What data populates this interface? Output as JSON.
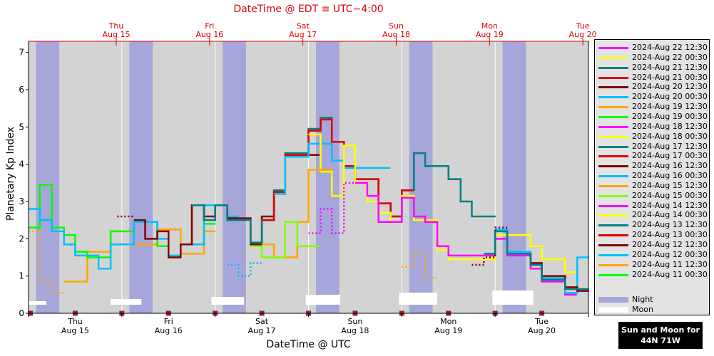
{
  "top_axis": {
    "title": "DateTime @ EDT ≡ UTC−4:00",
    "ticks": [
      {
        "day": "Thu",
        "date": "Aug 15",
        "t": 0.94
      },
      {
        "day": "Fri",
        "date": "Aug 16",
        "t": 1.94
      },
      {
        "day": "Sat",
        "date": "Aug 17",
        "t": 2.94
      },
      {
        "day": "Sun",
        "date": "Aug 18",
        "t": 3.94
      },
      {
        "day": "Mon",
        "date": "Aug 19",
        "t": 4.94
      },
      {
        "day": "Tue",
        "date": "Aug 20",
        "t": 5.94
      }
    ]
  },
  "bottom_axis": {
    "title": "DateTime @ UTC",
    "ticks": [
      {
        "day": "Thu",
        "date": "Aug 15",
        "t": 0.5
      },
      {
        "day": "Fri",
        "date": "Aug 16",
        "t": 1.5
      },
      {
        "day": "Sat",
        "date": "Aug 17",
        "t": 2.5
      },
      {
        "day": "Sun",
        "date": "Aug 18",
        "t": 3.5
      },
      {
        "day": "Mon",
        "date": "Aug 19",
        "t": 4.5
      },
      {
        "day": "Tue",
        "date": "Aug 20",
        "t": 5.5
      }
    ]
  },
  "y_axis": {
    "title": "Planetary Kp Index",
    "ticks": [
      "0",
      "1",
      "2",
      "3",
      "4",
      "5",
      "6",
      "7"
    ]
  },
  "sun_moon_box": {
    "line1": "Sun and Moon for",
    "line2": "44N 71W"
  },
  "colors": {
    "night": "#a6a6db",
    "day": "#d3d3d3",
    "moon": "#ffffff",
    "marker": "#e00000"
  },
  "legend": [
    {
      "label": "2024-Aug 22 12:30",
      "color": "#ff00ff"
    },
    {
      "label": "2024-Aug 22 00:30",
      "color": "#ffff00"
    },
    {
      "label": "2024-Aug 21 12:30",
      "color": "#008080"
    },
    {
      "label": "2024-Aug 21 00:30",
      "color": "#e00000"
    },
    {
      "label": "2024-Aug 20 12:30",
      "color": "#800000"
    },
    {
      "label": "2024-Aug 20 00:30",
      "color": "#00bfff"
    },
    {
      "label": "2024-Aug 19 12:30",
      "color": "#ffa500"
    },
    {
      "label": "2024-Aug 19 00:30",
      "color": "#00ff00"
    },
    {
      "label": "2024-Aug 18 12:30",
      "color": "#ff00ff"
    },
    {
      "label": "2024-Aug 18 00:30",
      "color": "#ffff00"
    },
    {
      "label": "2024-Aug 17 12:30",
      "color": "#008080"
    },
    {
      "label": "2024-Aug 17 00:30",
      "color": "#e00000"
    },
    {
      "label": "2024-Aug 16 12:30",
      "color": "#800000"
    },
    {
      "label": "2024-Aug 16 00:30",
      "color": "#00bfff"
    },
    {
      "label": "2024-Aug 15 12:30",
      "color": "#ffa500"
    },
    {
      "label": "2024-Aug 15 00:30",
      "color": "#80ff00"
    },
    {
      "label": "2024-Aug 14 12:30",
      "color": "#ff00ff"
    },
    {
      "label": "2024-Aug 14 00:30",
      "color": "#ffff00"
    },
    {
      "label": "2024-Aug 13 12:30",
      "color": "#008080"
    },
    {
      "label": "2024-Aug 13 00:30",
      "color": "#e00000"
    },
    {
      "label": "2024-Aug 12 12:30",
      "color": "#800000"
    },
    {
      "label": "2024-Aug 12 00:30",
      "color": "#00bfff"
    },
    {
      "label": "2024-Aug 11 12:30",
      "color": "#ffa500"
    },
    {
      "label": "2024-Aug 11 00:30",
      "color": "#00ff00"
    }
  ],
  "legend_extra": [
    {
      "label": "Night",
      "color": "#a6a6db"
    },
    {
      "label": "Moon",
      "color": "#ffffff"
    }
  ],
  "chart_data": {
    "type": "line",
    "title": "DateTime @ EDT ≡ UTC−4:00",
    "xlabel": "DateTime @ UTC",
    "ylabel": "Planetary Kp Index",
    "x_start": "2024-Aug 15 00:00 UTC",
    "x_range_days": [
      0,
      6
    ],
    "ylim": [
      0,
      7.3
    ],
    "night_bands_days": [
      [
        0.08,
        0.33
      ],
      [
        1.08,
        1.33
      ],
      [
        2.08,
        2.33
      ],
      [
        3.08,
        3.33
      ],
      [
        4.08,
        4.33
      ],
      [
        5.08,
        5.33
      ]
    ],
    "moon_bars_days": [
      [
        0.0,
        0.19
      ],
      [
        0.88,
        1.21
      ],
      [
        1.96,
        2.31
      ],
      [
        2.97,
        3.34
      ],
      [
        3.97,
        4.38
      ],
      [
        4.97,
        5.41
      ]
    ],
    "moon_markers_days": [
      0.02,
      0.5,
      1.0,
      1.5,
      2.0,
      2.5,
      3.0,
      3.5,
      4.0,
      4.5,
      5.0,
      5.5
    ],
    "series": [
      {
        "name": "2024-Aug 11 12:30",
        "color": "#ffa500",
        "dotted": [
          [
            0.0,
            2.2
          ],
          [
            0.12,
            0.85
          ],
          [
            0.25,
            0.55
          ],
          [
            0.38,
            0.85
          ]
        ],
        "values": [
          [
            0.38,
            0.85
          ],
          [
            0.63,
            1.65
          ],
          [
            0.88,
            2.2
          ],
          [
            1.13,
            1.85
          ],
          [
            1.38,
            2.25
          ],
          [
            1.63,
            1.6
          ],
          [
            1.88,
            2.2
          ]
        ]
      },
      {
        "name": "2024-Aug 11 00:30",
        "color": "#00ff00",
        "values": [
          [
            0.0,
            2.3
          ],
          [
            0.12,
            3.45
          ],
          [
            0.25,
            2.3
          ],
          [
            0.38,
            2.1
          ],
          [
            0.5,
            1.65
          ],
          [
            0.63,
            1.5
          ],
          [
            0.75,
            1.5
          ],
          [
            0.88,
            2.2
          ],
          [
            1.13,
            2.45
          ],
          [
            1.38,
            1.8
          ],
          [
            1.5,
            1.5
          ],
          [
            1.63,
            1.85
          ],
          [
            1.88,
            2.4
          ]
        ]
      },
      {
        "name": "2024-Aug 12 00:30",
        "color": "#00bfff",
        "values": [
          [
            0.0,
            2.8
          ],
          [
            0.12,
            2.5
          ],
          [
            0.25,
            2.2
          ],
          [
            0.38,
            1.85
          ],
          [
            0.5,
            1.55
          ],
          [
            0.75,
            1.2
          ],
          [
            0.88,
            1.85
          ],
          [
            1.13,
            2.45
          ],
          [
            1.38,
            2.0
          ],
          [
            1.5,
            1.55
          ],
          [
            1.63,
            1.85
          ],
          [
            1.88,
            2.9
          ],
          [
            2.13,
            2.6
          ]
        ],
        "dotted": [
          [
            2.13,
            1.3
          ],
          [
            2.25,
            1.0
          ],
          [
            2.38,
            1.35
          ],
          [
            2.5,
            1.65
          ]
        ]
      },
      {
        "name": "2024-Aug 12 12:30",
        "color": "#800000",
        "dotted": [
          [
            0.95,
            2.6
          ],
          [
            1.13,
            2.5
          ]
        ],
        "values": [
          [
            1.13,
            2.5
          ],
          [
            1.25,
            2.0
          ],
          [
            1.38,
            2.2
          ],
          [
            1.5,
            1.5
          ],
          [
            1.63,
            1.85
          ],
          [
            1.75,
            2.9
          ],
          [
            1.88,
            2.6
          ],
          [
            2.0,
            2.9
          ],
          [
            2.13,
            2.55
          ],
          [
            2.38,
            1.85
          ],
          [
            2.5,
            2.6
          ],
          [
            2.63,
            3.3
          ],
          [
            2.75,
            4.25
          ],
          [
            3.0,
            4.25
          ]
        ]
      },
      {
        "name": "2024-Aug 13 12:30",
        "color": "#008080",
        "values": [
          [
            1.75,
            2.9
          ],
          [
            1.88,
            2.5
          ],
          [
            2.0,
            2.9
          ],
          [
            2.13,
            2.5
          ],
          [
            2.38,
            1.9
          ],
          [
            2.5,
            2.5
          ],
          [
            2.63,
            3.3
          ],
          [
            2.75,
            4.3
          ],
          [
            3.0,
            4.95
          ],
          [
            3.13,
            5.25
          ],
          [
            3.25,
            4.6
          ],
          [
            3.38,
            3.95
          ],
          [
            3.5,
            3.6
          ],
          [
            3.75,
            2.95
          ],
          [
            3.88,
            2.6
          ],
          [
            4.0,
            3.3
          ],
          [
            4.13,
            4.3
          ],
          [
            4.25,
            3.95
          ],
          [
            4.5,
            3.6
          ],
          [
            4.63,
            3.0
          ],
          [
            4.75,
            2.6
          ],
          [
            4.88,
            2.6
          ]
        ]
      },
      {
        "name": "2024-Aug 13 00:30",
        "color": "#e00000",
        "values": [
          [
            2.5,
            2.5
          ],
          [
            2.63,
            3.25
          ],
          [
            2.75,
            4.25
          ],
          [
            3.0,
            4.9
          ],
          [
            3.13,
            5.2
          ],
          [
            3.25,
            4.6
          ],
          [
            3.38,
            3.95
          ],
          [
            3.5,
            3.6
          ],
          [
            3.75,
            2.95
          ],
          [
            3.88,
            2.6
          ],
          [
            4.0,
            3.3
          ]
        ]
      },
      {
        "name": "2024-Aug 12 00:30 (late)",
        "color": "#00bfff",
        "values": [
          [
            2.63,
            3.2
          ],
          [
            2.75,
            4.2
          ],
          [
            3.0,
            4.55
          ],
          [
            3.25,
            4.1
          ],
          [
            3.38,
            3.9
          ],
          [
            3.5,
            3.9
          ],
          [
            3.75,
            3.9
          ]
        ]
      },
      {
        "name": "2024-Aug 14 00:30",
        "color": "#ffff00",
        "values": [
          [
            3.0,
            4.8
          ],
          [
            3.13,
            3.8
          ],
          [
            3.25,
            3.15
          ],
          [
            3.38,
            4.5
          ],
          [
            3.5,
            3.5
          ],
          [
            3.63,
            3.0
          ],
          [
            3.75,
            2.7
          ],
          [
            3.88,
            2.45
          ],
          [
            4.0,
            3.15
          ],
          [
            4.13,
            2.5
          ],
          [
            4.25,
            2.5
          ],
          [
            4.38,
            1.7
          ],
          [
            4.5,
            1.45
          ],
          [
            4.75,
            1.45
          ],
          [
            4.88,
            1.45
          ],
          [
            5.0,
            2.1
          ],
          [
            5.25,
            2.1
          ],
          [
            5.38,
            1.8
          ],
          [
            5.5,
            1.45
          ],
          [
            5.75,
            1.1
          ]
        ]
      },
      {
        "name": "2024-Aug 14 12:30",
        "color": "#ff00ff",
        "dotted": [
          [
            3.0,
            2.15
          ],
          [
            3.13,
            2.8
          ],
          [
            3.25,
            2.15
          ],
          [
            3.38,
            3.5
          ],
          [
            3.5,
            3.5
          ]
        ],
        "values": [
          [
            3.5,
            3.5
          ],
          [
            3.63,
            3.15
          ],
          [
            3.75,
            2.45
          ],
          [
            3.88,
            2.45
          ],
          [
            4.0,
            3.1
          ],
          [
            4.13,
            2.6
          ],
          [
            4.25,
            2.45
          ],
          [
            4.38,
            1.8
          ],
          [
            4.5,
            1.55
          ],
          [
            4.88,
            1.55
          ],
          [
            5.0,
            2.0
          ],
          [
            5.13,
            1.55
          ],
          [
            5.38,
            1.2
          ],
          [
            5.5,
            0.85
          ],
          [
            5.75,
            0.5
          ]
        ]
      },
      {
        "name": "2024-Aug 15 12:30",
        "color": "#ffa500",
        "dotted": [
          [
            4.0,
            1.25
          ],
          [
            4.13,
            1.6
          ],
          [
            4.25,
            0.95
          ],
          [
            4.38,
            1.95
          ]
        ],
        "values": [
          [
            2.5,
            1.85
          ],
          [
            2.63,
            1.5
          ],
          [
            2.75,
            1.5
          ],
          [
            2.88,
            2.45
          ],
          [
            3.0,
            3.85
          ],
          [
            3.13,
            3.85
          ]
        ]
      },
      {
        "name": "2024-Aug 15 00:30",
        "color": "#80ff00",
        "values": [
          [
            2.38,
            1.8
          ],
          [
            2.5,
            1.5
          ],
          [
            2.75,
            2.45
          ],
          [
            2.88,
            1.8
          ],
          [
            3.0,
            1.8
          ]
        ]
      },
      {
        "name": "2024-Aug 16 00:30",
        "color": "#00bfff",
        "values": [
          [
            5.0,
            2.25
          ],
          [
            5.13,
            1.65
          ],
          [
            5.38,
            1.3
          ],
          [
            5.5,
            0.95
          ],
          [
            5.75,
            0.55
          ],
          [
            5.88,
            1.5
          ]
        ]
      },
      {
        "name": "2024-Aug 16 12:30",
        "color": "#800000",
        "dotted": [
          [
            4.75,
            1.3
          ],
          [
            4.88,
            1.5
          ],
          [
            5.0,
            2.3
          ],
          [
            5.13,
            2.2
          ]
        ],
        "values": [
          [
            5.13,
            1.6
          ],
          [
            5.38,
            1.35
          ],
          [
            5.5,
            1.0
          ],
          [
            5.75,
            0.7
          ],
          [
            5.88,
            0.6
          ]
        ]
      },
      {
        "name": "2024-Aug 17 12:30",
        "color": "#008080",
        "values": [
          [
            4.88,
            1.6
          ],
          [
            5.0,
            2.2
          ],
          [
            5.13,
            1.6
          ],
          [
            5.38,
            1.3
          ],
          [
            5.5,
            0.9
          ],
          [
            5.75,
            0.65
          ],
          [
            5.88,
            0.65
          ]
        ]
      }
    ]
  }
}
